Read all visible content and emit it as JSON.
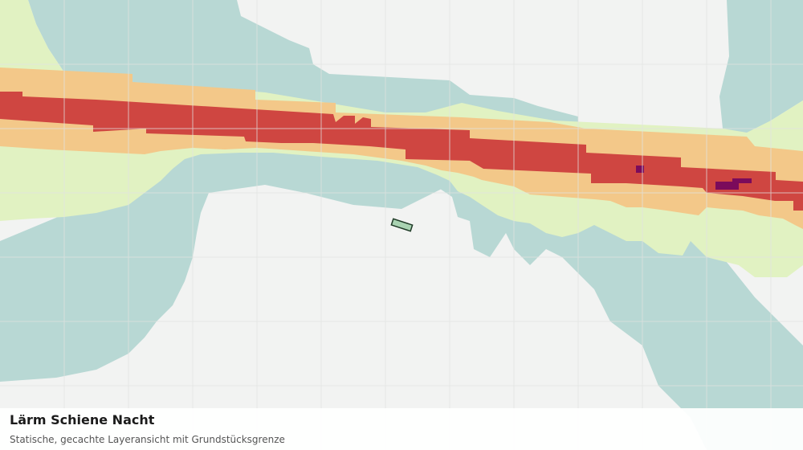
{
  "map": {
    "title": "Lärm Schiene Nacht",
    "subtitle": "Statische, gecachte Layeransicht mit Grundstücksgrenze",
    "colors": {
      "background": "#f2f3f2",
      "grid": "#e1e3e1",
      "noise_band_1": "#b8d8d4",
      "noise_band_2": "#e1f2c2",
      "noise_band_3": "#f3c889",
      "noise_band_4": "#cf4641",
      "noise_band_5": "#7b0b5b",
      "parcel_fill": "#a9d3b2",
      "parcel_outline": "#1f3a27"
    }
  }
}
